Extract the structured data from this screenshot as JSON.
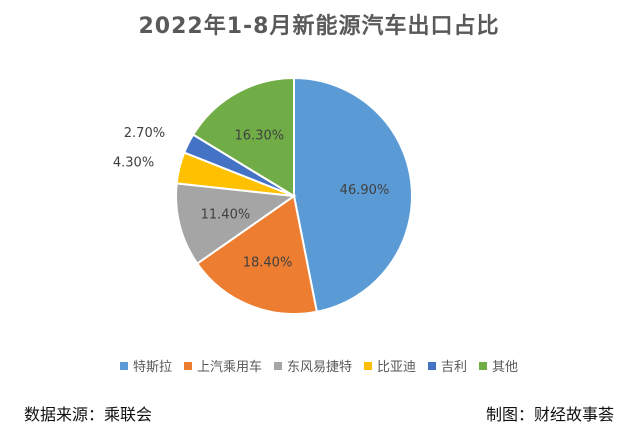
{
  "chart_data": {
    "type": "pie",
    "title": "2022年1-8月新能源汽车出口占比",
    "series": [
      {
        "name": "特斯拉",
        "value": 46.9,
        "label": "46.90%",
        "color": "#5B9BD5"
      },
      {
        "name": "上汽乘用车",
        "value": 18.4,
        "label": "18.40%",
        "color": "#ED7D31"
      },
      {
        "name": "东风易捷特",
        "value": 11.4,
        "label": "11.40%",
        "color": "#A5A5A5"
      },
      {
        "name": "比亚迪",
        "value": 4.3,
        "label": "4.30%",
        "color": "#FFC000"
      },
      {
        "name": "吉利",
        "value": 2.7,
        "label": "2.70%",
        "color": "#4472C4"
      },
      {
        "name": "其他",
        "value": 16.3,
        "label": "16.30%",
        "color": "#70AD47"
      }
    ],
    "legend_position": "bottom"
  },
  "footer": {
    "source": "数据来源：乘联会",
    "credit": "制图：财经故事荟"
  }
}
